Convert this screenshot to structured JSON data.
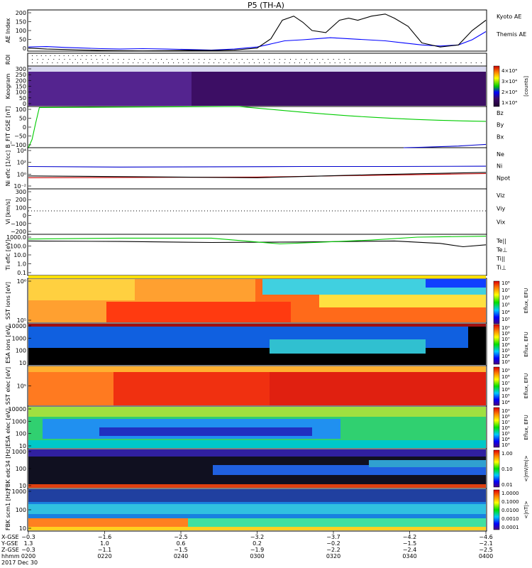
{
  "title": "P5 (TH-A)",
  "chart_data": [
    {
      "type": "line",
      "panel": "ae",
      "ylabel": "AE Index",
      "ylim": [
        0,
        200
      ],
      "yticks": [
        "200",
        "150",
        "100",
        "50",
        "0"
      ],
      "series": [
        {
          "name": "Kyoto AE",
          "color": "#0000ff",
          "x": [
            0.0,
            0.04,
            0.08,
            0.12,
            0.16,
            0.2,
            0.25,
            0.3,
            0.35,
            0.4,
            0.45,
            0.5,
            0.53,
            0.56,
            0.6,
            0.63,
            0.66,
            0.7,
            0.74,
            0.78,
            0.82,
            0.86,
            0.9,
            0.94,
            0.97,
            1.0
          ],
          "y": [
            20,
            22,
            18,
            15,
            12,
            10,
            12,
            10,
            8,
            5,
            10,
            20,
            35,
            50,
            55,
            60,
            65,
            60,
            55,
            50,
            40,
            30,
            25,
            30,
            55,
            95
          ]
        },
        {
          "name": "Themis AE",
          "color": "#000000",
          "x": [
            0.0,
            0.04,
            0.08,
            0.12,
            0.16,
            0.2,
            0.25,
            0.3,
            0.35,
            0.4,
            0.45,
            0.5,
            0.53,
            0.555,
            0.58,
            0.6,
            0.62,
            0.65,
            0.68,
            0.7,
            0.72,
            0.75,
            0.78,
            0.8,
            0.83,
            0.86,
            0.9,
            0.94,
            0.97,
            1.0
          ],
          "y": [
            15,
            10,
            8,
            5,
            3,
            2,
            1,
            2,
            4,
            3,
            5,
            15,
            60,
            150,
            170,
            140,
            100,
            90,
            150,
            160,
            150,
            170,
            180,
            160,
            120,
            40,
            20,
            30,
            100,
            150
          ]
        }
      ]
    },
    {
      "type": "heatmap",
      "panel": "roi",
      "ylabel": "ROI"
    },
    {
      "type": "heatmap",
      "panel": "keogram",
      "ylabel": "Keogram",
      "ylim": [
        0,
        300
      ],
      "yticks": [
        "300",
        "250",
        "200",
        "150",
        "100",
        "50",
        "0"
      ],
      "colorbar_ticks": [
        "4×10⁴",
        "3×10⁴",
        "2×10⁴",
        "1×10⁴"
      ],
      "colorbar_label": "[counts]"
    },
    {
      "type": "line",
      "panel": "bfit",
      "ylabel": "B_FIT GSE [nT]",
      "ylim": [
        -100,
        100
      ],
      "yticks": [
        "100",
        "50",
        "0",
        "−50",
        "−100"
      ],
      "series": [
        {
          "name": "Bz",
          "color": "#cc0000",
          "x": [],
          "y": []
        },
        {
          "name": "By",
          "color": "#00cc00",
          "x": [
            0.0,
            0.008,
            0.016,
            0.024,
            0.46,
            0.5,
            0.55,
            0.6,
            0.65,
            0.7,
            0.75,
            0.8,
            0.85,
            0.9,
            0.95,
            1.0
          ],
          "y": [
            -100,
            -60,
            20,
            95,
            100,
            92,
            82,
            72,
            63,
            55,
            48,
            42,
            37,
            33,
            30,
            28
          ]
        },
        {
          "name": "Bx",
          "color": "#0000cc",
          "x": [
            0.82,
            0.86,
            0.9,
            0.94,
            0.97,
            1.0
          ],
          "y": [
            -100,
            -98,
            -95,
            -92,
            -88,
            -84
          ]
        }
      ]
    },
    {
      "type": "line",
      "panel": "ni",
      "ylabel": "Ni eflc [1/cc]",
      "ylim_log": [
        -2,
        5
      ],
      "yticks": [
        "10⁴",
        "10²",
        "10⁰",
        "10⁻²"
      ],
      "series": [
        {
          "name": "Ne",
          "color": "#cc0000",
          "x": [
            0.0,
            0.5,
            0.75,
            1.0
          ],
          "y_log": [
            -0.1,
            0.0,
            0.3,
            0.6
          ]
        },
        {
          "name": "Ni",
          "color": "#000000",
          "x": [
            0.0,
            0.5,
            0.75,
            1.0
          ],
          "y_log": [
            0.2,
            -0.1,
            0.4,
            0.8
          ]
        },
        {
          "name": "Npot",
          "color": "#0000cc",
          "x": [
            0.0,
            0.2,
            0.4,
            0.6,
            0.8,
            1.0
          ],
          "y_log": [
            1.8,
            1.7,
            1.75,
            1.8,
            1.8,
            1.85
          ]
        }
      ]
    },
    {
      "type": "line",
      "panel": "vi",
      "ylabel": "Vi [km/s]",
      "ylim": [
        -300,
        300
      ],
      "yticks": [
        "300",
        "200",
        "100",
        "0",
        "−100",
        "−200"
      ],
      "series": [
        {
          "name": "Viz",
          "color": "#cc0000",
          "x": [],
          "y": []
        },
        {
          "name": "Viy",
          "color": "#00cc00",
          "x": [],
          "y": []
        },
        {
          "name": "Vix",
          "color": "#0000cc",
          "x": [],
          "y": []
        }
      ]
    },
    {
      "type": "line",
      "panel": "ti",
      "ylabel": "Ti eflc [eV]",
      "ylim_log": [
        -1,
        3.3
      ],
      "yticks": [
        "1000.0",
        "100.0",
        "10.0",
        "1.0",
        "0.1"
      ],
      "series": [
        {
          "name": "Te||",
          "color": "#000000",
          "x": [
            0.0,
            0.2,
            0.4,
            0.6,
            0.8,
            0.9,
            0.95,
            1.0
          ],
          "y_log": [
            2.6,
            2.55,
            2.45,
            2.5,
            2.6,
            2.35,
            2.0,
            2.2
          ]
        },
        {
          "name": "Te⊥",
          "color": "#cc0000",
          "x": [],
          "y_log": []
        },
        {
          "name": "Ti||",
          "color": "#00cc00",
          "x": [
            0.0,
            0.2,
            0.4,
            0.55,
            0.65,
            0.75,
            0.85,
            1.0
          ],
          "y_log": [
            2.8,
            2.9,
            2.9,
            2.3,
            2.5,
            2.7,
            3.0,
            3.1
          ]
        },
        {
          "name": "Ti⊥",
          "color": "#0000cc",
          "x": [],
          "y_log": []
        }
      ]
    },
    {
      "type": "heatmap",
      "panel": "sst1",
      "ylabel": "SST ions [eV]",
      "yticks": [
        "10⁶",
        "10⁵"
      ],
      "colorbar_label": "Eflux, EFU",
      "colorbar_ticks": [
        "10⁸",
        "10⁷",
        "10⁶",
        "10⁵",
        "10⁴",
        "10³"
      ]
    },
    {
      "type": "heatmap",
      "panel": "esa1",
      "ylabel": "ESA ions [eV]",
      "yticks": [
        "10000",
        "1000",
        "100",
        "10"
      ],
      "colorbar_label": "Eflux, EFU",
      "colorbar_ticks": [
        "10⁹",
        "10⁸",
        "10⁷",
        "10⁶",
        "10⁵",
        "10⁴",
        "10³"
      ]
    },
    {
      "type": "heatmap",
      "panel": "sst2",
      "ylabel": "SST elec [eV]",
      "yticks": [
        "10⁵"
      ],
      "colorbar_label": "Eflux, EFU",
      "colorbar_ticks": [
        "10⁹",
        "10⁸",
        "10⁷",
        "10⁶",
        "10⁵",
        "10⁴"
      ]
    },
    {
      "type": "heatmap",
      "panel": "esa2",
      "ylabel": "ESA elec [eV]",
      "yticks": [
        "10000",
        "1000",
        "100",
        "10"
      ],
      "colorbar_label": "Eflux, EFU",
      "colorbar_ticks": [
        "10⁹",
        "10⁸",
        "10⁷",
        "10⁶",
        "10⁵",
        "10⁴",
        "10³"
      ]
    },
    {
      "type": "heatmap",
      "panel": "fbk1",
      "ylabel": "FBK edc34 [Hz]",
      "yticks": [
        "1000",
        "100",
        "10"
      ],
      "colorbar_label": "<|mV/m|>",
      "colorbar_ticks": [
        "1.00",
        "0.10",
        "0.01"
      ]
    },
    {
      "type": "heatmap",
      "panel": "fbk2",
      "ylabel": "FBK scm1 [Hz]",
      "yticks": [
        "1000",
        "100",
        "10"
      ],
      "colorbar_label": "<|nT|>",
      "colorbar_ticks": [
        "1.0000",
        "0.1000",
        "0.0100",
        "0.0010",
        "0.0001"
      ]
    }
  ],
  "xaxis": {
    "row_labels": [
      "X-GSE",
      "Y-GSE",
      "Z-GSE",
      "hhmm",
      "2017 Dec 30"
    ],
    "ticks": [
      {
        "x": "−0.3",
        "y": "1.3",
        "z": "−0.3",
        "t": "0200"
      },
      {
        "x": "−1.6",
        "y": "1.0",
        "z": "−1.1",
        "t": "0220"
      },
      {
        "x": "−2.5",
        "y": "0.6",
        "z": "−1.5",
        "t": "0240"
      },
      {
        "x": "−3.2",
        "y": "0.2",
        "z": "−1.9",
        "t": "0300"
      },
      {
        "x": "−3.7",
        "y": "−0.2",
        "z": "−2.2",
        "t": "0320"
      },
      {
        "x": "−4.2",
        "y": "−1.5",
        "z": "−2.4",
        "t": "0340"
      },
      {
        "x": "−4.6",
        "y": "−2.1",
        "z": "−2.5",
        "t": "0400"
      }
    ]
  }
}
